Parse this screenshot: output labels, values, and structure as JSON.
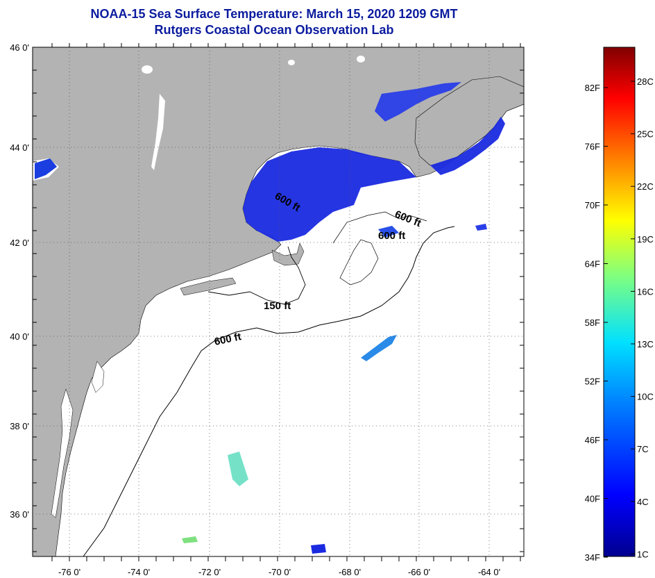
{
  "title": {
    "line1": "NOAA-15 Sea Surface Temperature:  March 15, 2020 1209 GMT",
    "line2": "Rutgers Coastal Ocean Observation Lab"
  },
  "axes": {
    "lat_labels": [
      "46 0'",
      "44 0'",
      "42 0'",
      "40 0'",
      "38 0'",
      "36 0'"
    ],
    "lon_labels": [
      "-76 0'",
      "-74 0'",
      "-72 0'",
      "-70 0'",
      "-68 0'",
      "-66 0'",
      "-64 0'"
    ]
  },
  "depth_labels": [
    "600 ft",
    "600 ft",
    "600 ft",
    "150 ft",
    "600 ft"
  ],
  "colorbar": {
    "fahrenheit": [
      "82F",
      "76F",
      "70F",
      "64F",
      "58F",
      "52F",
      "46F",
      "40F",
      "34F"
    ],
    "celsius": [
      "28C",
      "25C",
      "22C",
      "19C",
      "16C",
      "13C",
      "10C",
      "7C",
      "4C",
      "1C"
    ]
  },
  "colors": {
    "land": "#b3b3b3",
    "ocean_no_data": "#ffffff",
    "sst_cold": "#1a2ae0",
    "title": "#0b1b9e"
  }
}
